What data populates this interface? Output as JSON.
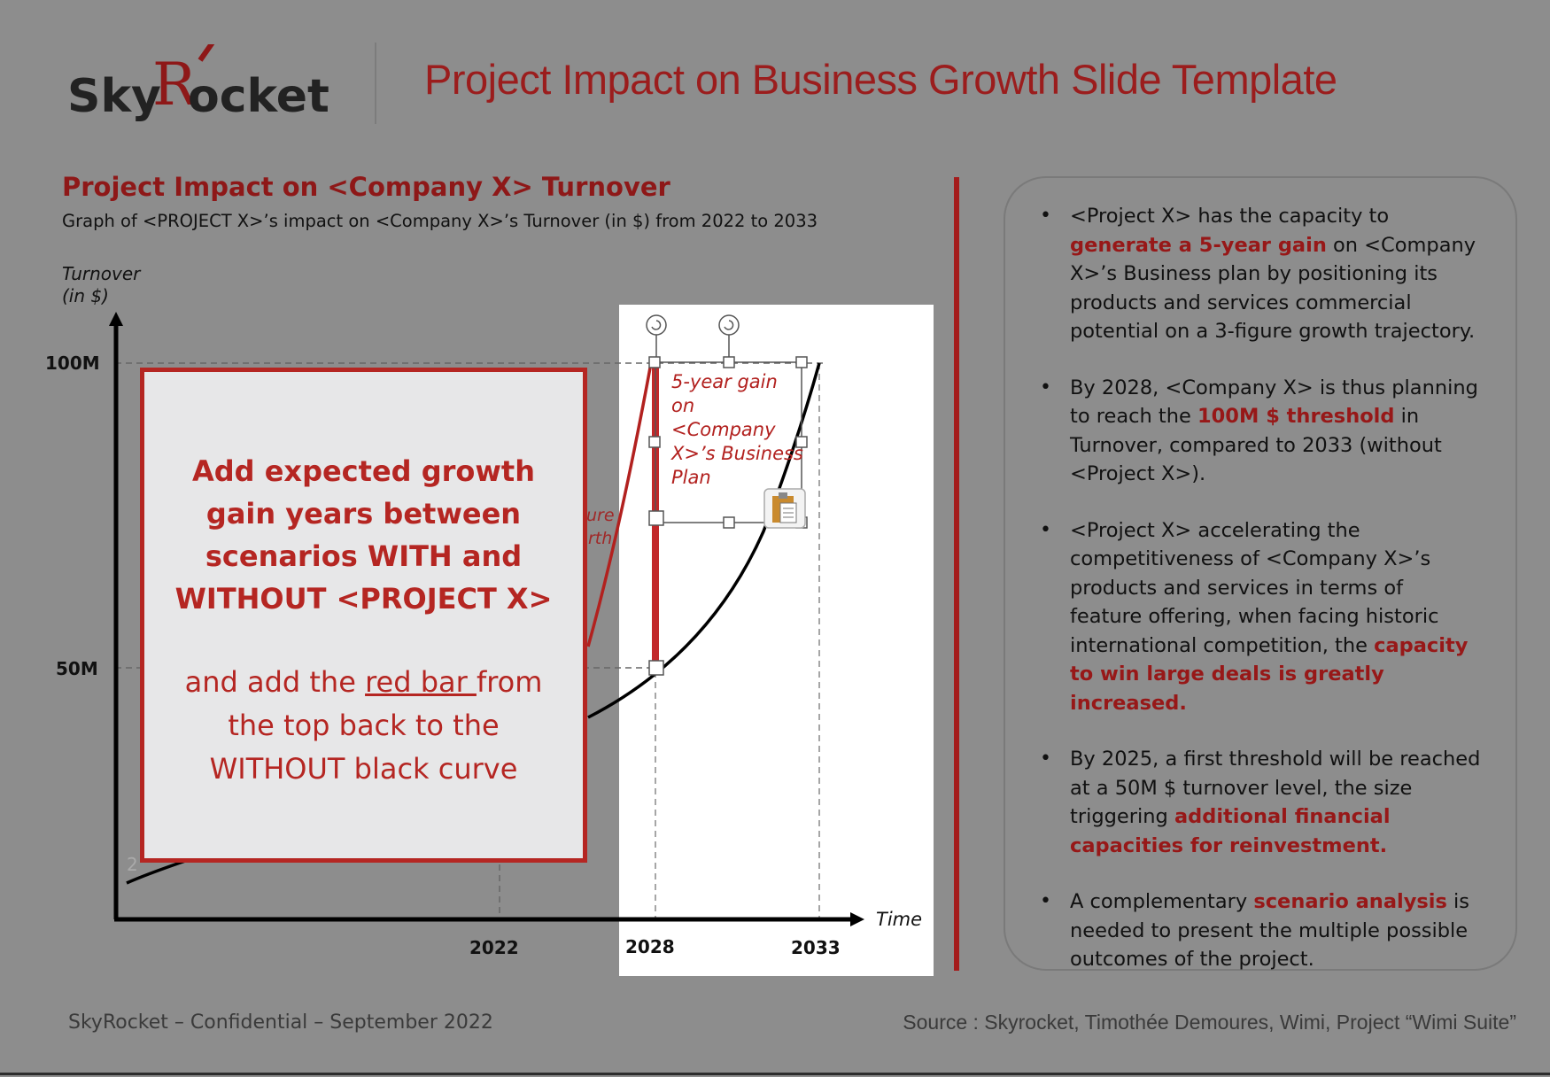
{
  "logo": {
    "text_left": "Sky",
    "text_r": "R",
    "text_right": "ocket"
  },
  "slide": {
    "title": "Project Impact on Business Growth Slide Template"
  },
  "chart": {
    "title": "Project Impact on <Company X> Turnover",
    "subtitle": "Graph of <PROJECT X>’s impact on <Company X>’s Turnover (in $) from 2022 to 2033",
    "ylabel_line1": "Turnover",
    "ylabel_line2": "(in $)",
    "xlabel": "Time",
    "y_ticks": [
      "100M",
      "50M"
    ],
    "x_ticks": [
      "2022",
      "2028",
      "2033"
    ],
    "gain_label": "5-year gain on <Company X>’s Business Plan",
    "partial_label_1": "ure",
    "partial_label_2": "rth",
    "partial_tick": "2"
  },
  "chart_data": {
    "type": "line",
    "xlabel": "Time",
    "ylabel": "Turnover (in $)",
    "title": "Project Impact on <Company X> Turnover",
    "x_ticks": [
      2022,
      2028,
      2033
    ],
    "y_ticks": [
      "50M",
      "100M"
    ],
    "series": [],
    "annotations": [
      "5-year gain on <Company X>’s Business Plan"
    ]
  },
  "instruction": {
    "line1": "Add expected growth gain years between scenarios WITH and WITHOUT <PROJECT X>",
    "part_a": "and add the ",
    "part_b": "red bar ",
    "part_c": "from the top back to the WITHOUT black curve"
  },
  "bullets": [
    {
      "pre": "<Project X> has the capacity to ",
      "hl": "generate a 5-year gain",
      "post": " on <Company X>’s Business plan by positioning its products and services commercial potential on a 3-figure growth trajectory."
    },
    {
      "pre": "By 2028, <Company X> is thus planning to reach the ",
      "hl": "100M $ threshold",
      "post": " in Turnover, compared to 2033 (without <Project X>)."
    },
    {
      "pre": "<Project X> accelerating the competitiveness of <Company X>’s products and services in terms of feature offering, when facing historic international competition, the ",
      "hl": "capacity to win large deals is greatly increased.",
      "post": ""
    },
    {
      "pre": "By 2025, a first threshold will be reached at a 50M $ turnover level, the size triggering ",
      "hl": "additional financial capacities for reinvestment.",
      "post": ""
    },
    {
      "pre": "A complementary ",
      "hl": "scenario analysis",
      "post": " is needed to present the multiple possible outcomes of the project."
    }
  ],
  "footer": {
    "left": "SkyRocket – Confidential – September 2022",
    "right": "Source : Skyrocket, Timothée Demoures, Wimi, Project “Wimi Suite”"
  },
  "colors": {
    "accent": "#9b1d1d",
    "background": "#8d8d8d",
    "instruction_bg": "#e7e7e8"
  }
}
